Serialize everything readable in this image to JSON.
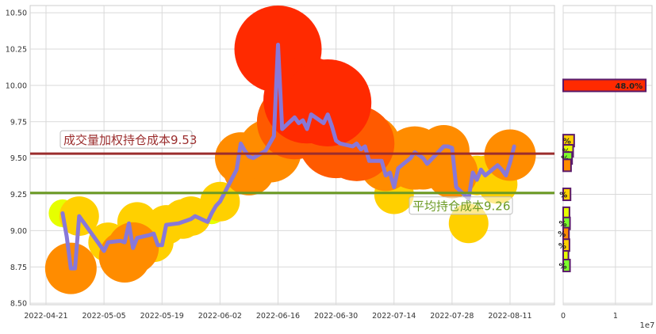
{
  "colors": {
    "grid": "#d9d9d9",
    "price_line": "#8878d8",
    "weighted_cost_line": "#9b2d2d",
    "avg_cost_line": "#6b9a24",
    "bubble_palette": [
      "#ff2a00",
      "#ff5a00",
      "#ff8c00",
      "#ffd000",
      "#e6ff00",
      "#7dff2a"
    ],
    "bar_outline": "#5a1a6a"
  },
  "chart_data": [
    {
      "type": "line",
      "x_tick_labels": [
        "2022-04-21",
        "2022-05-05",
        "2022-05-19",
        "2022-06-02",
        "2022-06-16",
        "2022-06-30",
        "2022-07-14",
        "2022-07-28",
        "2022-08-11"
      ],
      "y_tick_labels": [
        "8.50",
        "8.75",
        "9.00",
        "9.25",
        "9.50",
        "9.75",
        "10.00",
        "10.25",
        "10.50"
      ],
      "ylim": [
        8.49,
        10.55
      ],
      "grid": true,
      "series": [
        {
          "x": [
            "2022-04-25",
            "2022-04-26",
            "2022-04-27",
            "2022-04-28",
            "2022-04-29",
            "2022-05-05",
            "2022-05-06",
            "2022-05-09",
            "2022-05-10",
            "2022-05-11",
            "2022-05-12",
            "2022-05-13",
            "2022-05-16",
            "2022-05-17",
            "2022-05-18",
            "2022-05-19",
            "2022-05-20",
            "2022-05-23",
            "2022-05-24",
            "2022-05-25",
            "2022-05-26",
            "2022-05-27",
            "2022-05-30",
            "2022-05-31",
            "2022-06-01",
            "2022-06-02",
            "2022-06-06",
            "2022-06-07",
            "2022-06-08",
            "2022-06-09",
            "2022-06-10",
            "2022-06-13",
            "2022-06-14",
            "2022-06-15",
            "2022-06-16",
            "2022-06-17",
            "2022-06-20",
            "2022-06-21",
            "2022-06-22",
            "2022-06-23",
            "2022-06-24",
            "2022-06-27",
            "2022-06-28",
            "2022-06-29",
            "2022-06-30",
            "2022-07-01",
            "2022-07-04",
            "2022-07-05",
            "2022-07-06",
            "2022-07-07",
            "2022-07-08",
            "2022-07-11",
            "2022-07-12",
            "2022-07-13",
            "2022-07-14",
            "2022-07-15",
            "2022-07-18",
            "2022-07-19",
            "2022-07-20",
            "2022-07-21",
            "2022-07-22",
            "2022-07-25",
            "2022-07-26",
            "2022-07-27",
            "2022-07-28",
            "2022-07-29",
            "2022-08-01",
            "2022-08-02",
            "2022-08-03",
            "2022-08-04",
            "2022-08-05",
            "2022-08-08",
            "2022-08-09",
            "2022-08-10",
            "2022-08-11",
            "2022-08-12"
          ],
          "values": [
            9.12,
            8.96,
            8.74,
            8.74,
            9.1,
            8.86,
            8.92,
            8.93,
            8.92,
            9.05,
            8.88,
            8.95,
            8.97,
            8.98,
            8.9,
            8.9,
            9.04,
            9.05,
            9.06,
            9.07,
            9.08,
            9.1,
            9.06,
            9.12,
            9.17,
            9.2,
            9.42,
            9.6,
            9.55,
            9.51,
            9.5,
            9.55,
            9.6,
            9.65,
            10.28,
            9.7,
            9.78,
            9.74,
            9.76,
            9.7,
            9.8,
            9.74,
            9.8,
            9.72,
            9.62,
            9.6,
            9.58,
            9.6,
            9.56,
            9.58,
            9.48,
            9.48,
            9.38,
            9.4,
            9.3,
            9.43,
            9.5,
            9.54,
            9.52,
            9.5,
            9.46,
            9.55,
            9.58,
            9.58,
            9.57,
            9.3,
            9.22,
            9.4,
            9.35,
            9.42,
            9.38,
            9.45,
            9.42,
            9.38,
            9.47,
            9.58
          ]
        }
      ],
      "bubbles": [
        {
          "x": "2022-04-25",
          "y": 9.12,
          "volume": 1
        },
        {
          "x": "2022-04-27",
          "y": 8.74,
          "volume": 3
        },
        {
          "x": "2022-04-29",
          "y": 9.1,
          "volume": 2
        },
        {
          "x": "2022-05-06",
          "y": 8.92,
          "volume": 2
        },
        {
          "x": "2022-05-10",
          "y": 8.82,
          "volume": 3
        },
        {
          "x": "2022-05-12",
          "y": 8.88,
          "volume": 3
        },
        {
          "x": "2022-05-13",
          "y": 9.06,
          "volume": 2
        },
        {
          "x": "2022-05-17",
          "y": 8.92,
          "volume": 2
        },
        {
          "x": "2022-05-20",
          "y": 9.04,
          "volume": 2
        },
        {
          "x": "2022-05-24",
          "y": 9.08,
          "volume": 2
        },
        {
          "x": "2022-05-26",
          "y": 9.1,
          "volume": 2
        },
        {
          "x": "2022-05-31",
          "y": 9.14,
          "volume": 1
        },
        {
          "x": "2022-06-02",
          "y": 9.2,
          "volume": 2
        },
        {
          "x": "2022-06-07",
          "y": 9.5,
          "volume": 3
        },
        {
          "x": "2022-06-09",
          "y": 9.42,
          "volume": 3
        },
        {
          "x": "2022-06-14",
          "y": 9.55,
          "volume": 4
        },
        {
          "x": "2022-06-16",
          "y": 10.25,
          "volume": 6
        },
        {
          "x": "2022-06-20",
          "y": 9.75,
          "volume": 5
        },
        {
          "x": "2022-06-23",
          "y": 9.9,
          "volume": 6
        },
        {
          "x": "2022-06-28",
          "y": 9.88,
          "volume": 6
        },
        {
          "x": "2022-06-30",
          "y": 9.62,
          "volume": 5
        },
        {
          "x": "2022-07-05",
          "y": 9.6,
          "volume": 5
        },
        {
          "x": "2022-07-08",
          "y": 9.58,
          "volume": 4
        },
        {
          "x": "2022-07-12",
          "y": 9.45,
          "volume": 3
        },
        {
          "x": "2022-07-14",
          "y": 9.25,
          "volume": 2
        },
        {
          "x": "2022-07-19",
          "y": 9.5,
          "volume": 4
        },
        {
          "x": "2022-07-21",
          "y": 9.46,
          "volume": 3
        },
        {
          "x": "2022-07-26",
          "y": 9.55,
          "volume": 3
        },
        {
          "x": "2022-07-28",
          "y": 9.4,
          "volume": 3
        },
        {
          "x": "2022-08-01",
          "y": 9.05,
          "volume": 2
        },
        {
          "x": "2022-08-03",
          "y": 9.38,
          "volume": 2
        },
        {
          "x": "2022-08-05",
          "y": 9.38,
          "volume": 2
        },
        {
          "x": "2022-08-08",
          "y": 9.32,
          "volume": 2
        },
        {
          "x": "2022-08-11",
          "y": 9.52,
          "volume": 3
        }
      ],
      "reference_lines": [
        {
          "label": "成交量加权持仓成本9.53",
          "value": 9.53
        },
        {
          "label": "平均持仓成本9.26",
          "value": 9.26
        }
      ]
    },
    {
      "type": "bar",
      "orientation": "horizontal",
      "x_tick_labels": [
        "0",
        "1"
      ],
      "x_offset_label": "1e7",
      "xlim": [
        0,
        17000000
      ],
      "bars": [
        {
          "y": 10.0,
          "value": 15800000,
          "label": "48.0%"
        },
        {
          "y": 9.62,
          "value": 2100000,
          "label": "%"
        },
        {
          "y": 9.55,
          "value": 1900000,
          "label": "%"
        },
        {
          "y": 9.5,
          "value": 1700000,
          "label": "%"
        },
        {
          "y": 9.45,
          "value": 1500000,
          "label": ""
        },
        {
          "y": 9.25,
          "value": 1400000,
          "label": "%"
        },
        {
          "y": 9.12,
          "value": 1200000,
          "label": ""
        },
        {
          "y": 9.05,
          "value": 1300000,
          "label": "%"
        },
        {
          "y": 8.98,
          "value": 1100000,
          "label": "%"
        },
        {
          "y": 8.9,
          "value": 1200000,
          "label": "%"
        },
        {
          "y": 8.82,
          "value": 1000000,
          "label": ""
        },
        {
          "y": 8.76,
          "value": 1300000,
          "label": "%"
        }
      ]
    }
  ]
}
